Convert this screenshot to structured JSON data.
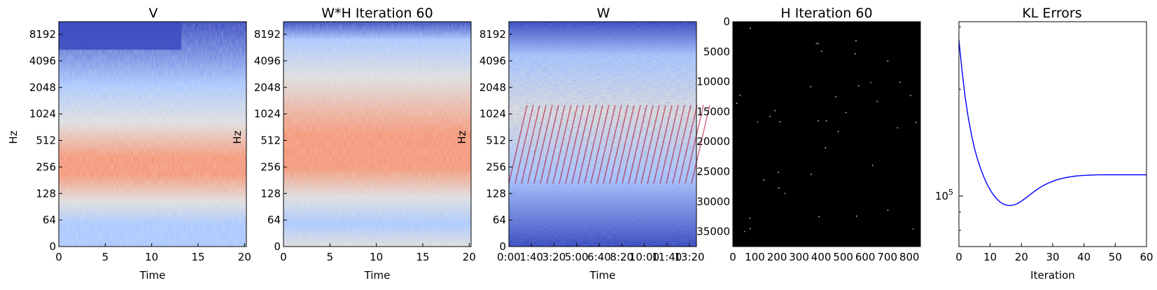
{
  "colors": {
    "cool_low": "#3b4cc0",
    "cool_mid": "#aac7fd",
    "neutral": "#dddddd",
    "warm_mid": "#f4987a",
    "warm_high": "#b40426",
    "h_background": "#000000",
    "kl_line": "#0000ff",
    "axes": "#000000"
  },
  "chart_data": [
    {
      "type": "heatmap",
      "title": "V",
      "xlabel": "Time",
      "ylabel": "Hz",
      "xticks": [
        "0",
        "5",
        "10",
        "15",
        "20"
      ],
      "xlim": [
        0,
        20.2
      ],
      "yscale": "log2",
      "yticks": [
        "0",
        "64",
        "128",
        "256",
        "512",
        "1024",
        "2048",
        "4096",
        "8192"
      ],
      "colormap": "coolwarm"
    },
    {
      "type": "heatmap",
      "title": "W*H Iteration 60",
      "xlabel": "Time",
      "ylabel": "Hz",
      "xticks": [
        "0",
        "5",
        "10",
        "15",
        "20"
      ],
      "xlim": [
        0,
        20.2
      ],
      "yscale": "log2",
      "yticks": [
        "0",
        "64",
        "128",
        "256",
        "512",
        "1024",
        "2048",
        "4096",
        "8192"
      ],
      "colormap": "coolwarm"
    },
    {
      "type": "heatmap",
      "title": "W",
      "xlabel": "Time",
      "ylabel": "",
      "xticks": [
        "0:00",
        "1:40",
        "3:20",
        "5:00",
        "6:40",
        "8:20",
        "10:00",
        "11:40",
        "13:20"
      ],
      "yscale": "log2",
      "yticks": [
        "0",
        "64",
        "128",
        "256",
        "512",
        "1024",
        "2048",
        "4096",
        "8192"
      ],
      "colormap": "coolwarm"
    },
    {
      "type": "heatmap",
      "title": "H Iteration 60",
      "xlabel": "",
      "ylabel": "",
      "xticks": [
        "0",
        "100",
        "200",
        "300",
        "400",
        "500",
        "600",
        "700",
        "800"
      ],
      "xlim": [
        0,
        850
      ],
      "yticks": [
        "0",
        "5000",
        "10000",
        "15000",
        "20000",
        "25000",
        "30000",
        "35000"
      ],
      "ylim": [
        37500,
        0
      ],
      "colormap": "black background, sparse bright points"
    },
    {
      "type": "line",
      "title": "KL Errors",
      "xlabel": "Iteration",
      "ylabel": "",
      "xticks": [
        "0",
        "10",
        "20",
        "30",
        "40",
        "50",
        "60"
      ],
      "xlim": [
        0,
        60
      ],
      "yscale": "log",
      "ytick_labels": [
        {
          "value": 100000,
          "label": "10^5"
        }
      ],
      "ylim": [
        72000,
        310000
      ],
      "series": [
        {
          "x": [
            0,
            1,
            2,
            3,
            4,
            5,
            6,
            7,
            8,
            9,
            10,
            11,
            12,
            13,
            14,
            15,
            16,
            17,
            18,
            19,
            20,
            21,
            22,
            23,
            24,
            25,
            26,
            27,
            28,
            29,
            30,
            31,
            32,
            33,
            34,
            35,
            36,
            37,
            38,
            39,
            40,
            41,
            42,
            43,
            44,
            45,
            46,
            47,
            48,
            49,
            50,
            51,
            52,
            53,
            54,
            55,
            56,
            57,
            58,
            59,
            60
          ],
          "y": [
            275000,
            225000,
            190000,
            166000,
            149000,
            136000,
            126500,
            119000,
            113000,
            108000,
            104000,
            100800,
            98300,
            96400,
            95100,
            94300,
            94000,
            94100,
            94600,
            95500,
            96700,
            98100,
            99600,
            101200,
            102800,
            104300,
            105700,
            107000,
            108100,
            109100,
            110000,
            110800,
            111500,
            112100,
            112600,
            113000,
            113400,
            113700,
            113950,
            114150,
            114300,
            114420,
            114520,
            114600,
            114660,
            114700,
            114730,
            114750,
            114760,
            114770,
            114780,
            114780,
            114780,
            114780,
            114780,
            114780,
            114780,
            114780,
            114770,
            114760,
            114750
          ]
        }
      ]
    }
  ]
}
